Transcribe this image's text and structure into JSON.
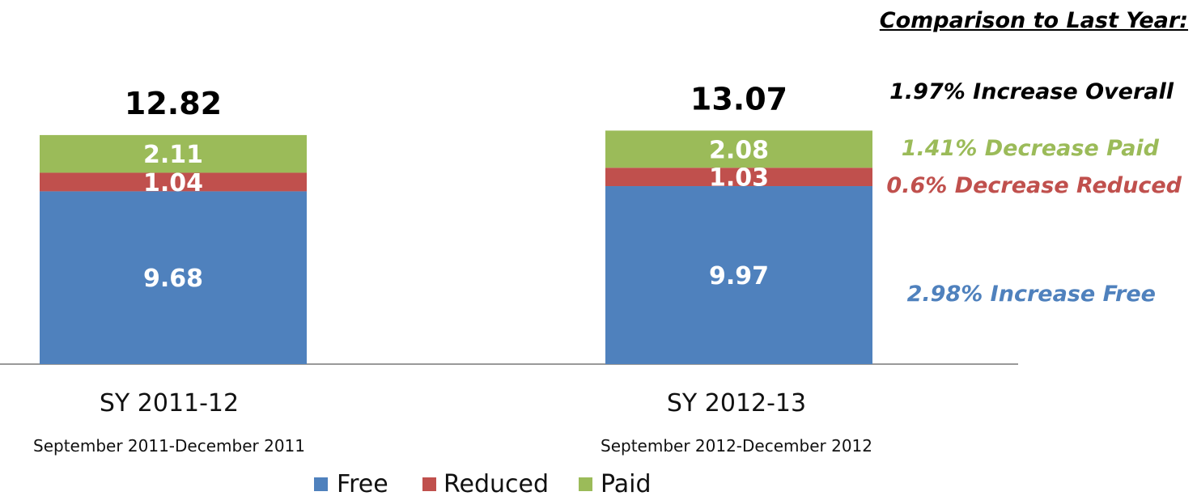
{
  "chart_data": {
    "type": "bar",
    "stacked": true,
    "categories": [
      "SY 2011-12",
      "SY 2012-13"
    ],
    "category_sublabels": [
      "September 2011-December 2011",
      "September 2012-December 2012"
    ],
    "totals": [
      "12.82",
      "13.07"
    ],
    "series": [
      {
        "name": "Free",
        "color": "#4f81bd",
        "values": [
          9.68,
          9.97
        ]
      },
      {
        "name": "Reduced",
        "color": "#c0504d",
        "values": [
          1.04,
          1.03
        ]
      },
      {
        "name": "Paid",
        "color": "#9bbb59",
        "values": [
          2.11,
          2.08
        ]
      }
    ],
    "data_labels": {
      "Free": [
        "9.68",
        "9.97"
      ],
      "Reduced": [
        "1.04",
        "1.03"
      ],
      "Paid": [
        "2.11",
        "2.08"
      ]
    },
    "ylim": [
      0,
      15.5
    ],
    "grid": false,
    "legend_position": "bottom"
  },
  "comparison": {
    "title": "Comparison to Last Year:",
    "overall": "1.97% Increase Overall",
    "paid": "1.41% Decrease Paid",
    "reduced": "0.6% Decrease Reduced",
    "free": "2.98% Increase Free",
    "colors": {
      "overall": "#000000",
      "paid": "#9bbb59",
      "reduced": "#c0504d",
      "free": "#4f81bd"
    }
  }
}
